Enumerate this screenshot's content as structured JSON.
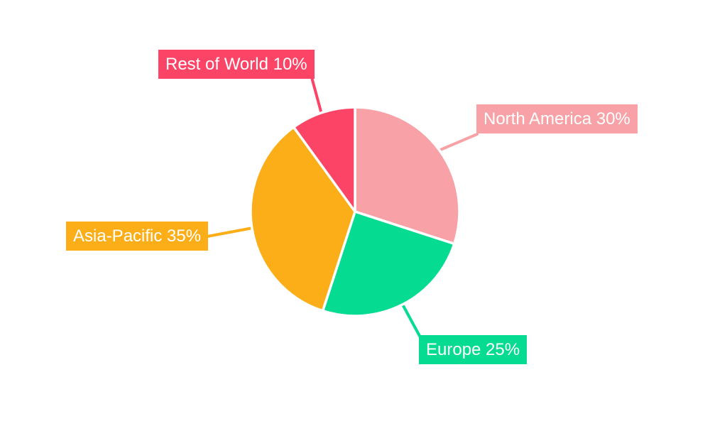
{
  "chart_data": {
    "type": "pie",
    "title": "",
    "labels": [
      "North America",
      "Europe",
      "Asia-Pacific",
      "Rest of World"
    ],
    "values": [
      30,
      25,
      35,
      10
    ],
    "unit": "%",
    "display_labels": [
      "North America 30%",
      "Europe 25%",
      "Asia-Pacific 35%",
      "Rest of World 10%"
    ],
    "colors": [
      "#F8A1A6",
      "#05DC92",
      "#FBAE17",
      "#FC4566"
    ],
    "slice_border_color": "#FFFFFF",
    "label_text_color": "#FFFFFF",
    "background": "#FFFFFF",
    "start_angle": "12 o'clock",
    "direction": "clockwise",
    "legend": "none",
    "label_style": "outside colored callout boxes with leader lines"
  }
}
